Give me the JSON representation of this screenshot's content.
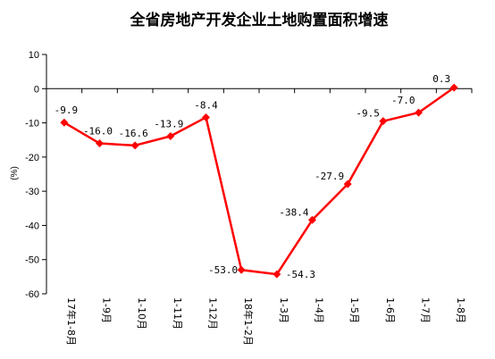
{
  "chart_data": {
    "type": "line",
    "title": "全省房地产开发企业土地购置面积增速",
    "ylabel": "(%)",
    "xlabel": "",
    "ylim": [
      -60,
      10
    ],
    "ytick_step": 10,
    "grid": false,
    "legend": "none",
    "categories": [
      "17年1-8月",
      "1-9月",
      "1-10月",
      "1-11月",
      "1-12月",
      "18年1-2月",
      "1-3月",
      "1-4月",
      "1-5月",
      "1-6月",
      "1-7月",
      "1-8月"
    ],
    "series": [
      {
        "values": [
          -9.9,
          -16.0,
          -16.6,
          -13.9,
          -8.4,
          -53.0,
          -54.3,
          -38.4,
          -27.9,
          -9.5,
          -7.0,
          0.3
        ],
        "labels": [
          "-9.9",
          "-16.0",
          "-16.6",
          "-13.9",
          "-8.4",
          "-53.0",
          "-54.3",
          "-38.4",
          "-27.9",
          "-9.5",
          "-7.0",
          "0.3"
        ],
        "color": "#ff0000"
      }
    ]
  }
}
